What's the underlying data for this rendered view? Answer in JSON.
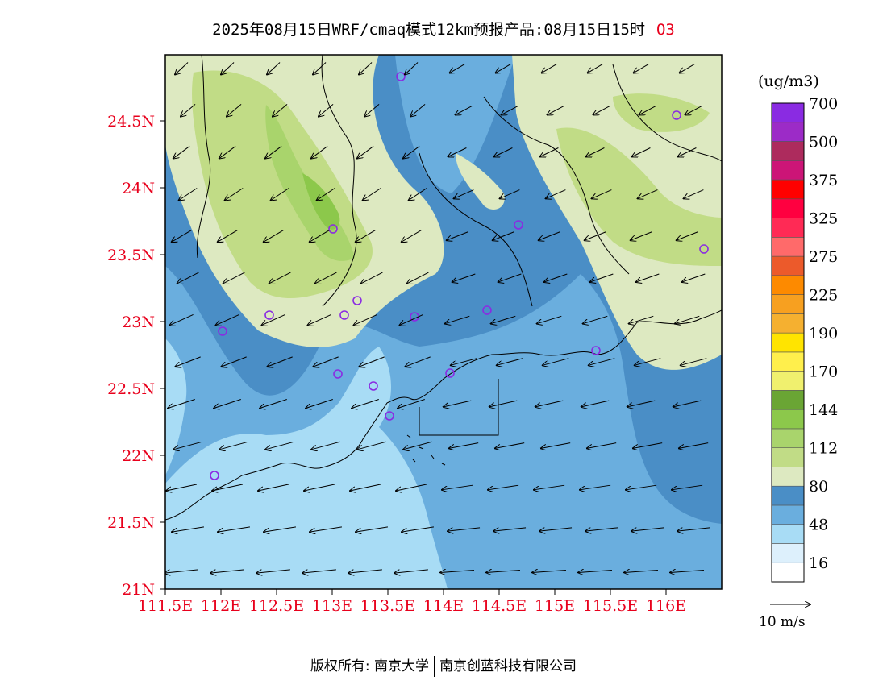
{
  "title": {
    "text": "2025年08月15日WRF/cmaq模式12km预报产品:08月15日15时",
    "species": "O3"
  },
  "map": {
    "lat_labels": [
      "24.5N",
      "24N",
      "23.5N",
      "23N",
      "22.5N",
      "22N",
      "21.5N",
      "21N"
    ],
    "lon_labels": [
      "111.5E",
      "112E",
      "112.5E",
      "113E",
      "113.5E",
      "114E",
      "114.5E",
      "115E",
      "115.5E",
      "116E"
    ],
    "lat_range": [
      21,
      25.0
    ],
    "lon_range": [
      111.5,
      116.3
    ],
    "field_colors": {
      "band_16_48": "#a8dcf5",
      "band_48_64": "#6aaede",
      "band_64_80": "#4a8ec6",
      "band_80_96": "#dde9c1",
      "band_96_112": "#c1dc86",
      "band_112_128": "#a9d46c",
      "band_128_144": "#8cc84b"
    },
    "station_color": "#8a2be2"
  },
  "colorbar": {
    "unit": "(ug/m3)",
    "colors": [
      "#ffffff",
      "#ddf0fc",
      "#a8dcf5",
      "#6aaede",
      "#4a8ec6",
      "#dde9c1",
      "#c1dc86",
      "#a9d46c",
      "#8cc84b",
      "#6aa534",
      "#f0f06e",
      "#ffef4c",
      "#ffe400",
      "#f5b030",
      "#f7a020",
      "#fd8a00",
      "#ec5a2b",
      "#ff6a6a",
      "#ff2a55",
      "#ff0040",
      "#ff0000",
      "#cc1577",
      "#ad2b5d",
      "#9c2bc7",
      "#8a2be2"
    ],
    "labels": [
      "16",
      "48",
      "80",
      "112",
      "144",
      "170",
      "190",
      "225",
      "275",
      "325",
      "375",
      "500",
      "700"
    ]
  },
  "wind": {
    "reference_label": "10 m/s"
  },
  "footer": {
    "left": "版权所有: 南京大学",
    "right": "南京创蓝科技有限公司"
  }
}
